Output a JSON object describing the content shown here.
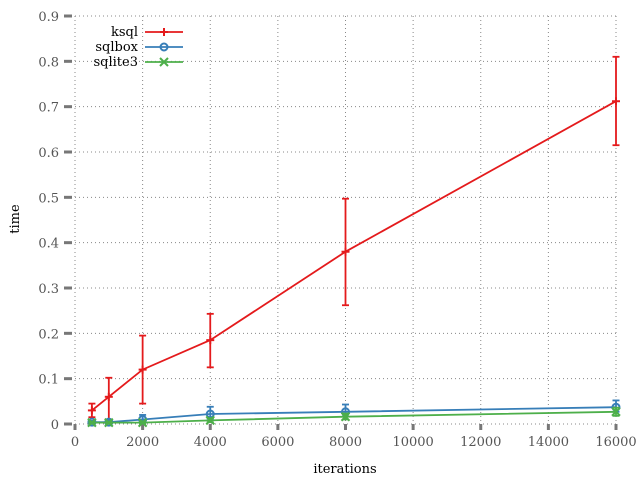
{
  "chart_data": {
    "type": "line",
    "xlabel": "iterations",
    "ylabel": "time",
    "xlim": [
      0,
      16000
    ],
    "ylim": [
      0,
      0.9
    ],
    "x_ticks": [
      0,
      2000,
      4000,
      6000,
      8000,
      10000,
      12000,
      14000,
      16000
    ],
    "y_ticks": [
      0,
      0.1,
      0.2,
      0.3,
      0.4,
      0.5,
      0.6,
      0.7,
      0.8,
      0.9
    ],
    "grid": true,
    "legend_position": "top-left",
    "series": [
      {
        "name": "ksql",
        "color": "#e41a1c",
        "marker": "plus",
        "x": [
          500,
          1000,
          2000,
          4000,
          8000,
          16000
        ],
        "y": [
          0.03,
          0.06,
          0.12,
          0.185,
          0.38,
          0.712
        ],
        "err_low": [
          0.015,
          0.01,
          0.045,
          0.125,
          0.262,
          0.615
        ],
        "err_high": [
          0.045,
          0.102,
          0.195,
          0.243,
          0.497,
          0.81
        ]
      },
      {
        "name": "sqlbox",
        "color": "#377eb8",
        "marker": "circle",
        "x": [
          500,
          1000,
          2000,
          4000,
          8000,
          16000
        ],
        "y": [
          0.004,
          0.004,
          0.01,
          0.022,
          0.027,
          0.037
        ],
        "err_low": [
          0.001,
          0.001,
          0.003,
          0.012,
          0.017,
          0.027
        ],
        "err_high": [
          0.007,
          0.01,
          0.02,
          0.038,
          0.043,
          0.052
        ]
      },
      {
        "name": "sqlite3",
        "color": "#4daf4a",
        "marker": "x",
        "x": [
          500,
          1000,
          2000,
          4000,
          8000,
          16000
        ],
        "y": [
          0.003,
          0.003,
          0.003,
          0.008,
          0.016,
          0.027
        ],
        "err_low": [
          0.001,
          0.001,
          0.001,
          0.004,
          0.01,
          0.018
        ],
        "err_high": [
          0.005,
          0.005,
          0.006,
          0.013,
          0.023,
          0.036
        ]
      }
    ]
  }
}
